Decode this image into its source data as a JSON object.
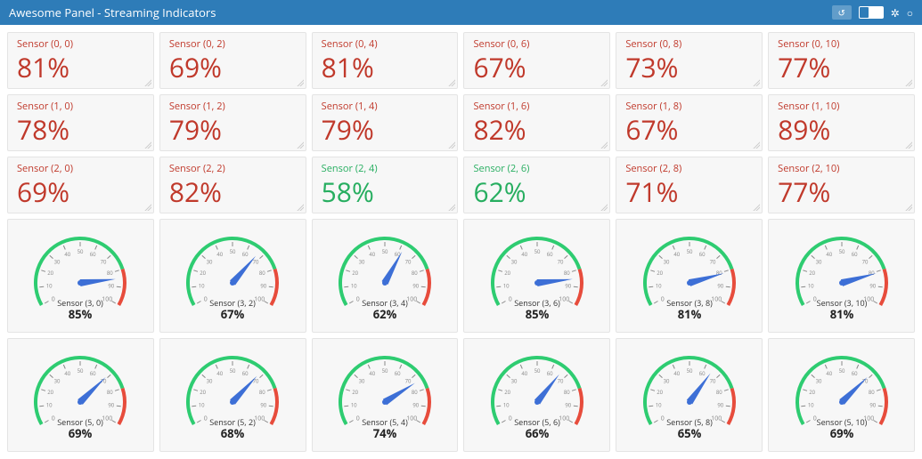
{
  "header": {
    "title": "Awesome Panel  -  Streaming Indicators"
  },
  "colors": {
    "header_bg": "#2e7cb8",
    "card_bg": "#f7f7f7",
    "card_border": "#e4e4e4",
    "red": "#c0392b",
    "green": "#27ae60",
    "gauge_green": "#2ecc71",
    "gauge_red": "#e74c3c",
    "gauge_tick": "#888888",
    "needle": "#3d6fd6"
  },
  "numberCards": [
    {
      "label": "Sensor (0, 0)",
      "value": 81,
      "status": "red"
    },
    {
      "label": "Sensor (0, 2)",
      "value": 69,
      "status": "red"
    },
    {
      "label": "Sensor (0, 4)",
      "value": 81,
      "status": "red"
    },
    {
      "label": "Sensor (0, 6)",
      "value": 67,
      "status": "red"
    },
    {
      "label": "Sensor (0, 8)",
      "value": 73,
      "status": "red"
    },
    {
      "label": "Sensor (0, 10)",
      "value": 77,
      "status": "red"
    },
    {
      "label": "Sensor (1, 0)",
      "value": 78,
      "status": "red"
    },
    {
      "label": "Sensor (1, 2)",
      "value": 79,
      "status": "red"
    },
    {
      "label": "Sensor (1, 4)",
      "value": 79,
      "status": "red"
    },
    {
      "label": "Sensor (1, 6)",
      "value": 82,
      "status": "red"
    },
    {
      "label": "Sensor (1, 8)",
      "value": 67,
      "status": "red"
    },
    {
      "label": "Sensor (1, 10)",
      "value": 89,
      "status": "red"
    },
    {
      "label": "Sensor (2, 0)",
      "value": 69,
      "status": "red"
    },
    {
      "label": "Sensor (2, 2)",
      "value": 82,
      "status": "red"
    },
    {
      "label": "Sensor (2, 4)",
      "value": 58,
      "status": "green"
    },
    {
      "label": "Sensor (2, 6)",
      "value": 62,
      "status": "green"
    },
    {
      "label": "Sensor (2, 8)",
      "value": 71,
      "status": "red"
    },
    {
      "label": "Sensor (2, 10)",
      "value": 77,
      "status": "red"
    }
  ],
  "gaugeCards": [
    {
      "label": "Sensor (3, 0)",
      "value": 85
    },
    {
      "label": "Sensor (3, 2)",
      "value": 67
    },
    {
      "label": "Sensor (3, 4)",
      "value": 62
    },
    {
      "label": "Sensor (3, 6)",
      "value": 85
    },
    {
      "label": "Sensor (3, 8)",
      "value": 81
    },
    {
      "label": "Sensor (3, 10)",
      "value": 81
    },
    {
      "label": "Sensor (5, 0)",
      "value": 69
    },
    {
      "label": "Sensor (5, 2)",
      "value": 68
    },
    {
      "label": "Sensor (5, 4)",
      "value": 74
    },
    {
      "label": "Sensor (5, 6)",
      "value": 66
    },
    {
      "label": "Sensor (5, 8)",
      "value": 65
    },
    {
      "label": "Sensor (5, 10)",
      "value": 69
    }
  ],
  "gaugeStyle": {
    "min": 0,
    "max": 100,
    "startAngle": -210,
    "endAngle": 30,
    "redStartFraction": 0.8,
    "arcWidth": 4,
    "radius": 50,
    "majorTicks": [
      0,
      10,
      20,
      30,
      40,
      50,
      60,
      70,
      80,
      90,
      100
    ],
    "labelTicks": [
      0,
      100
    ]
  }
}
